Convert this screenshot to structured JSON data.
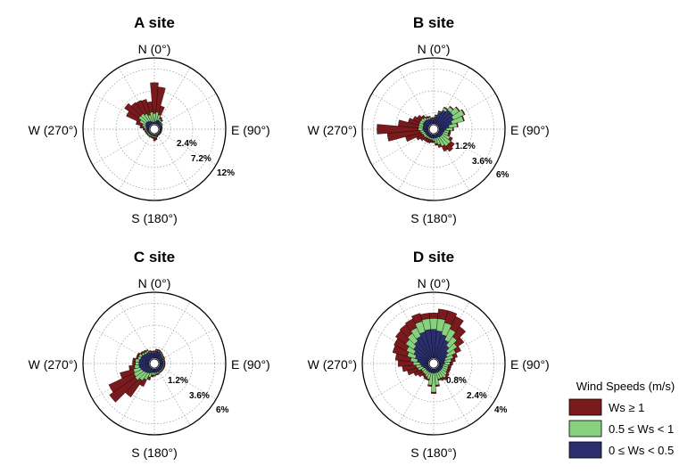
{
  "legend": {
    "title": "Wind Speeds (m/s)",
    "items": [
      {
        "label": "Ws ≥ 1",
        "color": "#7a1a1c"
      },
      {
        "label": "0.5 ≤ Ws < 1",
        "color": "#86d07e"
      },
      {
        "label": "0 ≤ Ws < 0.5",
        "color": "#2b2f6f"
      }
    ]
  },
  "chart_data": [
    {
      "type": "windrose",
      "title": "A site",
      "directions": {
        "n": "N (0°)",
        "e": "E (90°)",
        "s": "S (180°)",
        "w": "W (270°)"
      },
      "ring_labels": [
        "2.4%",
        "7.2%",
        "12%"
      ],
      "max_percent": 14.4,
      "sector_width_deg": 10,
      "series": [
        {
          "name": "0 ≤ Ws < 0.5",
          "directions_deg": [
            0,
            10,
            20,
            30,
            40,
            50,
            60,
            70,
            80,
            90,
            100,
            110,
            120,
            130,
            140,
            150,
            160,
            170,
            180,
            190,
            200,
            210,
            220,
            230,
            240,
            250,
            260,
            270,
            280,
            290,
            300,
            310,
            320,
            330,
            340,
            350
          ],
          "values": [
            0.3,
            0.6,
            0.9,
            0.9,
            0.8,
            0.6,
            0.5,
            0.4,
            0.4,
            0.3,
            0.3,
            0.3,
            0.3,
            0.3,
            0.3,
            0.3,
            0.3,
            0.3,
            0.3,
            0.3,
            0.3,
            0.3,
            0.3,
            0.3,
            0.3,
            0.4,
            0.5,
            0.5,
            0.6,
            0.8,
            1.0,
            1.1,
            1.0,
            0.8,
            0.6,
            0.4
          ]
        },
        {
          "name": "0.5 ≤ Ws < 1",
          "directions_deg": [
            0,
            10,
            20,
            30,
            40,
            50,
            60,
            70,
            80,
            90,
            100,
            110,
            120,
            130,
            140,
            150,
            160,
            170,
            180,
            190,
            200,
            210,
            220,
            230,
            240,
            250,
            260,
            270,
            280,
            290,
            300,
            310,
            320,
            330,
            340,
            350
          ],
          "values": [
            2.0,
            2.0,
            1.2,
            0.5,
            0.4,
            0.2,
            0.2,
            0.1,
            0.1,
            0.1,
            0.1,
            0.1,
            0.1,
            0.1,
            0.1,
            0.1,
            0.2,
            0.3,
            0.4,
            0.3,
            0.3,
            0.3,
            0.3,
            0.3,
            0.3,
            0.3,
            0.3,
            0.4,
            0.6,
            0.8,
            1.4,
            1.9,
            2.0,
            1.8,
            1.5,
            2.2
          ]
        },
        {
          "name": "Ws ≥ 1",
          "directions_deg": [
            0,
            10,
            20,
            30,
            40,
            50,
            60,
            70,
            80,
            90,
            100,
            110,
            120,
            130,
            140,
            150,
            160,
            170,
            180,
            190,
            200,
            210,
            220,
            230,
            240,
            250,
            260,
            270,
            280,
            290,
            300,
            310,
            320,
            330,
            340,
            350
          ],
          "values": [
            6.7,
            5.5,
            2.0,
            0.4,
            0.3,
            0.1,
            0.1,
            0.1,
            0.1,
            0.1,
            0.1,
            0.1,
            0.1,
            0.1,
            0.1,
            0.1,
            0.2,
            0.6,
            0.7,
            0.3,
            0.2,
            0.2,
            0.2,
            0.2,
            0.2,
            0.2,
            0.2,
            0.4,
            0.8,
            1.4,
            3.2,
            3.8,
            3.0,
            3.2,
            3.5,
            2.3
          ]
        }
      ]
    },
    {
      "type": "windrose",
      "title": "B site",
      "directions": {
        "n": "N (0°)",
        "e": "E (90°)",
        "s": "S (180°)",
        "w": "W (270°)"
      },
      "ring_labels": [
        "1.2%",
        "3.6%",
        "6%"
      ],
      "max_percent": 7.2,
      "sector_width_deg": 10,
      "series": [
        {
          "name": "0 ≤ Ws < 0.5",
          "directions_deg": [
            0,
            10,
            20,
            30,
            40,
            50,
            60,
            70,
            80,
            90,
            100,
            110,
            120,
            130,
            140,
            150,
            160,
            170,
            180,
            190,
            200,
            210,
            220,
            230,
            240,
            250,
            260,
            270,
            280,
            290,
            300,
            310,
            320,
            330,
            340,
            350
          ],
          "values": [
            0.5,
            0.8,
            1.3,
            1.7,
            2.0,
            2.0,
            1.8,
            1.5,
            1.1,
            0.8,
            0.6,
            0.5,
            0.5,
            0.5,
            0.5,
            0.4,
            0.4,
            0.4,
            0.4,
            0.4,
            0.4,
            0.4,
            0.4,
            0.4,
            0.4,
            0.4,
            0.5,
            0.6,
            0.6,
            0.6,
            0.7,
            0.7,
            0.7,
            0.6,
            0.6,
            0.5
          ]
        },
        {
          "name": "0.5 ≤ Ws < 1",
          "directions_deg": [
            0,
            10,
            20,
            30,
            40,
            50,
            60,
            70,
            80,
            90,
            100,
            110,
            120,
            130,
            140,
            150,
            160,
            170,
            180,
            190,
            200,
            210,
            220,
            230,
            240,
            250,
            260,
            270,
            280,
            290,
            300,
            310,
            320,
            330,
            340,
            350
          ],
          "values": [
            0.1,
            0.1,
            0.1,
            0.3,
            0.4,
            0.8,
            1.3,
            1.3,
            0.9,
            0.7,
            0.5,
            0.6,
            0.9,
            1.2,
            1.2,
            1.1,
            0.8,
            0.6,
            0.3,
            0.2,
            0.2,
            0.2,
            0.2,
            0.3,
            0.3,
            0.4,
            0.4,
            0.5,
            0.5,
            0.5,
            0.4,
            0.4,
            0.3,
            0.2,
            0.2,
            0.1
          ]
        },
        {
          "name": "Ws ≥ 1",
          "directions_deg": [
            0,
            10,
            20,
            30,
            40,
            50,
            60,
            70,
            80,
            90,
            100,
            110,
            120,
            130,
            140,
            150,
            160,
            170,
            180,
            190,
            200,
            210,
            220,
            230,
            240,
            250,
            260,
            270,
            280,
            290,
            300,
            310,
            320,
            330,
            340,
            350
          ],
          "values": [
            0.1,
            0.1,
            0.1,
            0.1,
            0.1,
            0.1,
            0.1,
            0.1,
            0.1,
            0.1,
            0.2,
            0.2,
            0.3,
            0.5,
            0.7,
            0.6,
            0.3,
            0.2,
            0.2,
            0.3,
            0.4,
            0.4,
            0.4,
            0.5,
            0.8,
            1.8,
            3.6,
            4.5,
            2.2,
            1.2,
            0.8,
            0.5,
            0.3,
            0.2,
            0.1,
            0.1
          ]
        }
      ]
    },
    {
      "type": "windrose",
      "title": "C site",
      "directions": {
        "n": "N (0°)",
        "e": "E (90°)",
        "s": "S (180°)",
        "w": "W (270°)"
      },
      "ring_labels": [
        "1.2%",
        "3.6%",
        "6%"
      ],
      "max_percent": 7.2,
      "sector_width_deg": 10,
      "series": [
        {
          "name": "0 ≤ Ws < 0.5",
          "directions_deg": [
            0,
            10,
            20,
            30,
            40,
            50,
            60,
            70,
            80,
            90,
            100,
            110,
            120,
            130,
            140,
            150,
            160,
            170,
            180,
            190,
            200,
            210,
            220,
            230,
            240,
            250,
            260,
            270,
            280,
            290,
            300,
            310,
            320,
            330,
            340,
            350
          ],
          "values": [
            0.6,
            0.8,
            0.8,
            0.7,
            0.6,
            0.5,
            0.5,
            0.4,
            0.4,
            0.4,
            0.4,
            0.4,
            0.4,
            0.4,
            0.4,
            0.4,
            0.4,
            0.4,
            0.4,
            0.4,
            0.5,
            0.6,
            0.7,
            0.8,
            0.9,
            1.0,
            1.1,
            1.1,
            1.1,
            1.0,
            1.0,
            0.9,
            0.8,
            0.8,
            0.7,
            0.6
          ]
        },
        {
          "name": "0.5 ≤ Ws < 1",
          "directions_deg": [
            0,
            10,
            20,
            30,
            40,
            50,
            60,
            70,
            80,
            90,
            100,
            110,
            120,
            130,
            140,
            150,
            160,
            170,
            180,
            190,
            200,
            210,
            220,
            230,
            240,
            250,
            260,
            270,
            280,
            290,
            300,
            310,
            320,
            330,
            340,
            350
          ],
          "values": [
            0.1,
            0.1,
            0.1,
            0.1,
            0.1,
            0.1,
            0.1,
            0.1,
            0.1,
            0.1,
            0.1,
            0.1,
            0.1,
            0.1,
            0.1,
            0.1,
            0.2,
            0.2,
            0.3,
            0.3,
            0.5,
            0.8,
            1.0,
            1.2,
            1.0,
            0.8,
            0.5,
            0.4,
            0.4,
            0.3,
            0.3,
            0.2,
            0.2,
            0.2,
            0.1,
            0.1
          ]
        },
        {
          "name": "Ws ≥ 1",
          "directions_deg": [
            0,
            10,
            20,
            30,
            40,
            50,
            60,
            70,
            80,
            90,
            100,
            110,
            120,
            130,
            140,
            150,
            160,
            170,
            180,
            190,
            200,
            210,
            220,
            230,
            240,
            250,
            260,
            270,
            280,
            290,
            300,
            310,
            320,
            330,
            340,
            350
          ],
          "values": [
            0.1,
            0.1,
            0.1,
            0.1,
            0.1,
            0.1,
            0.1,
            0.1,
            0.1,
            0.1,
            0.1,
            0.1,
            0.1,
            0.1,
            0.1,
            0.1,
            0.1,
            0.1,
            0.1,
            0.2,
            0.3,
            0.8,
            2.2,
            3.4,
            3.0,
            1.5,
            0.6,
            0.3,
            0.3,
            0.2,
            0.2,
            0.2,
            0.2,
            0.1,
            0.1,
            0.1
          ]
        }
      ]
    },
    {
      "type": "windrose",
      "title": "D site",
      "directions": {
        "n": "N (0°)",
        "e": "E (90°)",
        "s": "S (180°)",
        "w": "W (270°)"
      },
      "ring_labels": [
        "0.8%",
        "2.4%",
        "4%"
      ],
      "max_percent": 4.8,
      "sector_width_deg": 10,
      "series": [
        {
          "name": "0 ≤ Ws < 0.5",
          "directions_deg": [
            0,
            10,
            20,
            30,
            40,
            50,
            60,
            70,
            80,
            90,
            100,
            110,
            120,
            130,
            140,
            150,
            160,
            170,
            180,
            190,
            200,
            210,
            220,
            230,
            240,
            250,
            260,
            270,
            280,
            290,
            300,
            310,
            320,
            330,
            340,
            350
          ],
          "values": [
            2.1,
            2.0,
            1.8,
            1.5,
            1.2,
            0.9,
            0.7,
            0.5,
            0.4,
            0.4,
            0.3,
            0.3,
            0.3,
            0.3,
            0.3,
            0.3,
            0.3,
            0.3,
            0.3,
            0.3,
            0.3,
            0.3,
            0.3,
            0.3,
            0.3,
            0.4,
            0.5,
            0.6,
            0.8,
            1.0,
            1.2,
            1.4,
            1.6,
            1.8,
            2.0,
            2.1
          ]
        },
        {
          "name": "0.5 ≤ Ws < 1",
          "directions_deg": [
            0,
            10,
            20,
            30,
            40,
            50,
            60,
            70,
            80,
            90,
            100,
            110,
            120,
            130,
            140,
            150,
            160,
            170,
            180,
            190,
            200,
            210,
            220,
            230,
            240,
            250,
            260,
            270,
            280,
            290,
            300,
            310,
            320,
            330,
            340,
            350
          ],
          "values": [
            0.8,
            0.9,
            0.9,
            0.9,
            0.8,
            0.8,
            0.7,
            0.6,
            0.5,
            0.4,
            0.4,
            0.4,
            0.4,
            0.5,
            0.6,
            0.5,
            0.5,
            0.9,
            1.4,
            0.9,
            0.5,
            0.4,
            0.3,
            0.3,
            0.3,
            0.4,
            0.4,
            0.5,
            0.5,
            0.6,
            0.6,
            0.7,
            0.7,
            0.7,
            0.8,
            0.8
          ]
        },
        {
          "name": "Ws ≥ 1",
          "directions_deg": [
            0,
            10,
            20,
            30,
            40,
            50,
            60,
            70,
            80,
            90,
            100,
            110,
            120,
            130,
            140,
            150,
            160,
            170,
            180,
            190,
            200,
            210,
            220,
            230,
            240,
            250,
            260,
            270,
            280,
            290,
            300,
            310,
            320,
            330,
            340,
            350
          ],
          "values": [
            0.4,
            0.7,
            0.9,
            1.0,
            0.9,
            0.6,
            0.4,
            0.3,
            0.3,
            0.2,
            0.2,
            0.2,
            0.2,
            0.2,
            0.2,
            0.2,
            0.1,
            0.1,
            0.1,
            0.1,
            0.1,
            0.2,
            0.2,
            0.4,
            0.6,
            0.8,
            1.0,
            1.1,
            1.1,
            1.1,
            1.0,
            0.9,
            0.8,
            0.7,
            0.6,
            0.4
          ]
        }
      ]
    }
  ]
}
